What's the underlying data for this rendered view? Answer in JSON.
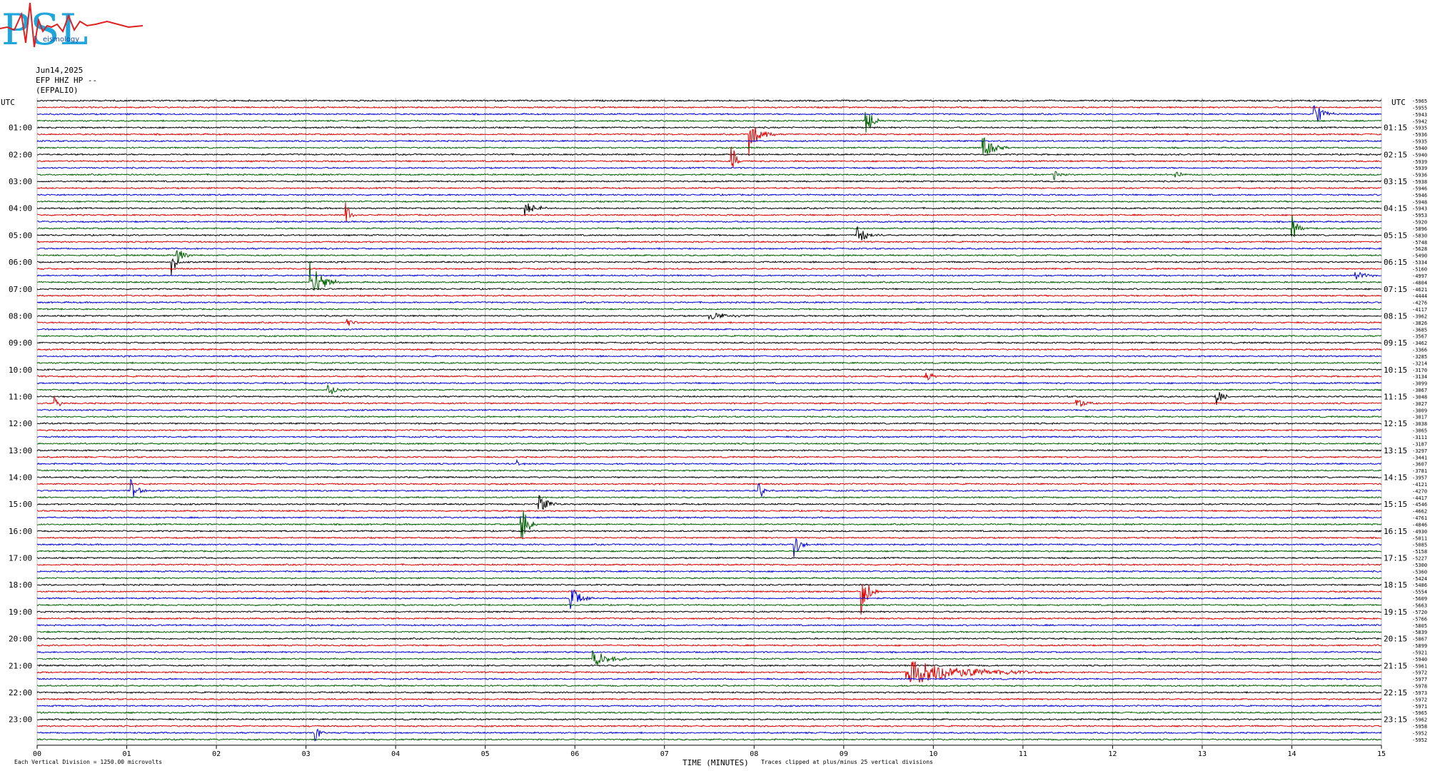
{
  "logo": {
    "big": "PSL",
    "small": "eismology"
  },
  "header": {
    "date": "Jun14,2025",
    "channel": "EFP HHZ HP --",
    "station": "(EFPALIO)"
  },
  "chart_data": {
    "type": "line",
    "title": "",
    "xlabel": "TIME (MINUTES)",
    "xlim": [
      0,
      15
    ],
    "x_ticks": [
      "00",
      "01",
      "02",
      "03",
      "04",
      "05",
      "06",
      "07",
      "08",
      "09",
      "10",
      "11",
      "12",
      "13",
      "14",
      "15"
    ],
    "left_axis_label": "UTC",
    "right_axis_label": "UTC",
    "left_hour_labels": [
      "01:00",
      "02:00",
      "03:00",
      "04:00",
      "05:00",
      "06:00",
      "07:00",
      "08:00",
      "09:00",
      "10:00",
      "11:00",
      "12:00",
      "13:00",
      "14:00",
      "15:00",
      "16:00",
      "17:00",
      "18:00",
      "19:00",
      "20:00",
      "21:00",
      "22:00",
      "23:00"
    ],
    "right_hour_labels": [
      "01:15",
      "02:15",
      "03:15",
      "04:15",
      "05:15",
      "06:15",
      "07:15",
      "08:15",
      "09:15",
      "10:15",
      "11:15",
      "12:15",
      "13:15",
      "14:15",
      "15:15",
      "16:15",
      "17:15",
      "18:15",
      "19:15",
      "20:15",
      "21:15",
      "22:15",
      "23:15"
    ],
    "trace_colors": [
      "#000000",
      "#e00000",
      "#0000e0",
      "#006000"
    ],
    "trace_count": 96,
    "trace_offsets": [
      "-5965",
      "-5955",
      "-5943",
      "-5942",
      "-5935",
      "-5936",
      "-5935",
      "-5940",
      "-5940",
      "-5939",
      "-5939",
      "-5936",
      "-5938",
      "-5946",
      "-5946",
      "-5948",
      "-5943",
      "-5953",
      "-5920",
      "-5896",
      "-5830",
      "-5748",
      "-5628",
      "-5490",
      "-5334",
      "-5160",
      "-4997",
      "-4804",
      "-4621",
      "-4444",
      "-4276",
      "-4117",
      "-3962",
      "-3826",
      "-3685",
      "-3567",
      "-3462",
      "-3366",
      "-3285",
      "-3214",
      "-3170",
      "-3134",
      "-3099",
      "-3067",
      "-3048",
      "-3027",
      "-3009",
      "-3017",
      "-3038",
      "-3065",
      "-3111",
      "-3187",
      "-3297",
      "-3441",
      "-3607",
      "-3781",
      "-3957",
      "-4121",
      "-4270",
      "-4417",
      "-4546",
      "-4662",
      "-4761",
      "-4846",
      "-4930",
      "-5011",
      "-5085",
      "-5158",
      "-5227",
      "-5300",
      "-5360",
      "-5424",
      "-5486",
      "-5554",
      "-5609",
      "-5663",
      "-5720",
      "-5766",
      "-5805",
      "-5839",
      "-5867",
      "-5899",
      "-5921",
      "-5940",
      "-5961",
      "-5972",
      "-5977",
      "-5978",
      "-5973",
      "-5972",
      "-5971",
      "-5965",
      "-5962",
      "-5958",
      "-5952",
      "-5952"
    ],
    "events": [
      {
        "trace": 2,
        "minute": 14.25,
        "amplitude": 2.0,
        "duration": 0.25
      },
      {
        "trace": 3,
        "minute": 9.25,
        "amplitude": 3.2,
        "duration": 0.15
      },
      {
        "trace": 5,
        "minute": 7.95,
        "amplitude": 3.0,
        "duration": 0.3
      },
      {
        "trace": 7,
        "minute": 10.55,
        "amplitude": 2.0,
        "duration": 0.3
      },
      {
        "trace": 9,
        "minute": 7.75,
        "amplitude": 3.2,
        "duration": 0.12
      },
      {
        "trace": 11,
        "minute": 11.35,
        "amplitude": 0.8,
        "duration": 0.15
      },
      {
        "trace": 11,
        "minute": 12.7,
        "amplitude": 0.8,
        "duration": 0.15
      },
      {
        "trace": 16,
        "minute": 5.45,
        "amplitude": 1.0,
        "duration": 0.35
      },
      {
        "trace": 17,
        "minute": 3.45,
        "amplitude": 1.5,
        "duration": 0.15
      },
      {
        "trace": 19,
        "minute": 14.0,
        "amplitude": 2.5,
        "duration": 0.15
      },
      {
        "trace": 20,
        "minute": 9.15,
        "amplitude": 1.3,
        "duration": 0.3
      },
      {
        "trace": 23,
        "minute": 1.55,
        "amplitude": 1.8,
        "duration": 0.2
      },
      {
        "trace": 24,
        "minute": 1.5,
        "amplitude": 2.2,
        "duration": 0.12
      },
      {
        "trace": 26,
        "minute": 14.7,
        "amplitude": 0.8,
        "duration": 0.3
      },
      {
        "trace": 27,
        "minute": 3.05,
        "amplitude": 3.0,
        "duration": 0.35
      },
      {
        "trace": 32,
        "minute": 7.5,
        "amplitude": 0.6,
        "duration": 0.5
      },
      {
        "trace": 33,
        "minute": 3.45,
        "amplitude": 0.8,
        "duration": 0.2
      },
      {
        "trace": 41,
        "minute": 9.9,
        "amplitude": 0.8,
        "duration": 0.3
      },
      {
        "trace": 43,
        "minute": 3.25,
        "amplitude": 0.9,
        "duration": 0.3
      },
      {
        "trace": 44,
        "minute": 13.15,
        "amplitude": 1.6,
        "duration": 0.2
      },
      {
        "trace": 45,
        "minute": 0.2,
        "amplitude": 1.0,
        "duration": 0.15
      },
      {
        "trace": 45,
        "minute": 11.6,
        "amplitude": 0.8,
        "duration": 0.35
      },
      {
        "trace": 54,
        "minute": 5.35,
        "amplitude": 0.6,
        "duration": 0.1
      },
      {
        "trace": 58,
        "minute": 1.05,
        "amplitude": 1.7,
        "duration": 0.2
      },
      {
        "trace": 58,
        "minute": 8.05,
        "amplitude": 1.8,
        "duration": 0.15
      },
      {
        "trace": 60,
        "minute": 5.6,
        "amplitude": 1.8,
        "duration": 0.25
      },
      {
        "trace": 63,
        "minute": 5.4,
        "amplitude": 3.4,
        "duration": 0.2
      },
      {
        "trace": 66,
        "minute": 8.45,
        "amplitude": 1.8,
        "duration": 0.2
      },
      {
        "trace": 73,
        "minute": 9.2,
        "amplitude": 3.4,
        "duration": 0.2
      },
      {
        "trace": 74,
        "minute": 5.95,
        "amplitude": 2.2,
        "duration": 0.25
      },
      {
        "trace": 83,
        "minute": 6.2,
        "amplitude": 1.4,
        "duration": 0.45
      },
      {
        "trace": 85,
        "minute": 9.7,
        "amplitude": 2.2,
        "duration": 1.6
      },
      {
        "trace": 94,
        "minute": 3.1,
        "amplitude": 1.3,
        "duration": 0.15
      }
    ]
  },
  "footer": {
    "scale_note": "Each Vertical Division = 1250.00 microvolts",
    "clip_note": "Traces clipped at plus/minus 25 vertical divisions"
  }
}
